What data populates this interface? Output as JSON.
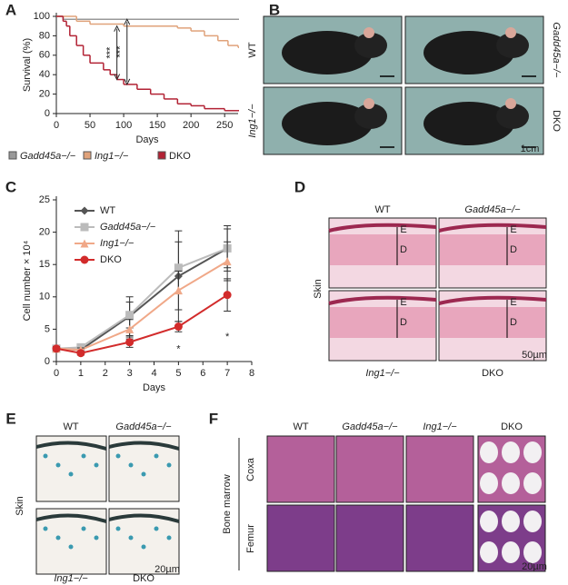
{
  "chart_data": [
    {
      "type": "step",
      "letter": "A",
      "ylabel": "Survival (%)",
      "xlabel": "Days",
      "xlim": [
        0,
        270
      ],
      "xticks": [
        0,
        50,
        100,
        150,
        200,
        250
      ],
      "ylim": [
        0,
        100
      ],
      "yticks": [
        0,
        20,
        40,
        60,
        80,
        100
      ],
      "annotations": [
        "***",
        "***"
      ],
      "series": [
        {
          "name": "Gadd45a−/−",
          "color": "#999999",
          "x": [
            0,
            10,
            270
          ],
          "values": [
            100,
            97,
            97
          ]
        },
        {
          "name": "Ing1−/−",
          "color": "#e0a27a",
          "x": [
            0,
            30,
            50,
            100,
            180,
            200,
            220,
            240,
            255,
            270
          ],
          "values": [
            100,
            95,
            92,
            90,
            88,
            85,
            80,
            75,
            70,
            68
          ]
        },
        {
          "name": "DKO",
          "color": "#b22234",
          "x": [
            0,
            10,
            15,
            20,
            30,
            40,
            50,
            70,
            80,
            90,
            100,
            120,
            140,
            160,
            180,
            200,
            220,
            250,
            270
          ],
          "values": [
            100,
            95,
            90,
            80,
            70,
            60,
            52,
            45,
            40,
            35,
            30,
            25,
            20,
            15,
            10,
            8,
            5,
            3,
            3
          ]
        }
      ]
    },
    {
      "type": "line",
      "letter": "C",
      "ylabel": "Cell number × 10⁴",
      "xlabel": "Days",
      "xlim": [
        0,
        8
      ],
      "xticks": [
        0,
        1,
        2,
        3,
        4,
        5,
        6,
        7,
        8
      ],
      "ylim": [
        0,
        25
      ],
      "yticks": [
        0,
        5,
        10,
        15,
        20,
        25
      ],
      "annotations": [
        "*",
        "*"
      ],
      "x": [
        0,
        1,
        3,
        5,
        7
      ],
      "series": [
        {
          "name": "WT",
          "color": "#555555",
          "marker": "diamond",
          "values": [
            2,
            1.8,
            7,
            13.2,
            17.5
          ],
          "errors": [
            0.3,
            0.3,
            3,
            7,
            3.5
          ]
        },
        {
          "name": "Gadd45a−/−",
          "color": "#bbbbbb",
          "marker": "square",
          "values": [
            2,
            2.2,
            7.2,
            14.5,
            17.5
          ],
          "errors": [
            0.3,
            0.3,
            2,
            4,
            3
          ]
        },
        {
          "name": "Ing1−/−",
          "color": "#f0a888",
          "marker": "triangle",
          "values": [
            2,
            1.8,
            5,
            11,
            15.5
          ],
          "errors": [
            0.3,
            0.3,
            1.5,
            3,
            3
          ]
        },
        {
          "name": "DKO",
          "color": "#d22b2b",
          "marker": "circle",
          "values": [
            2,
            1.3,
            3,
            5.4,
            10.3
          ],
          "errors": [
            0.3,
            0.3,
            0.8,
            0.8,
            2.5
          ]
        }
      ]
    }
  ],
  "panels": {
    "B": {
      "letter": "B",
      "labels": [
        "WT",
        "Gadd45a−/−",
        "Ing1−/−",
        "DKO"
      ],
      "scale": "1cm"
    },
    "D": {
      "letter": "D",
      "labels": [
        "WT",
        "Gadd45a−/−",
        "Ing1−/−",
        "DKO"
      ],
      "tissue": "Skin",
      "layers": [
        "E",
        "D"
      ],
      "scale": "50µm"
    },
    "E": {
      "letter": "E",
      "labels": [
        "WT",
        "Gadd45a−/−",
        "Ing1−/−",
        "DKO"
      ],
      "tissue": "Skin",
      "scale": "20µm"
    },
    "F": {
      "letter": "F",
      "labels": [
        "WT",
        "Gadd45a−/−",
        "Ing1−/−",
        "DKO"
      ],
      "tissue": "Bone marrow",
      "rows": [
        "Coxa",
        "Femur"
      ],
      "scale": "20µm"
    }
  }
}
